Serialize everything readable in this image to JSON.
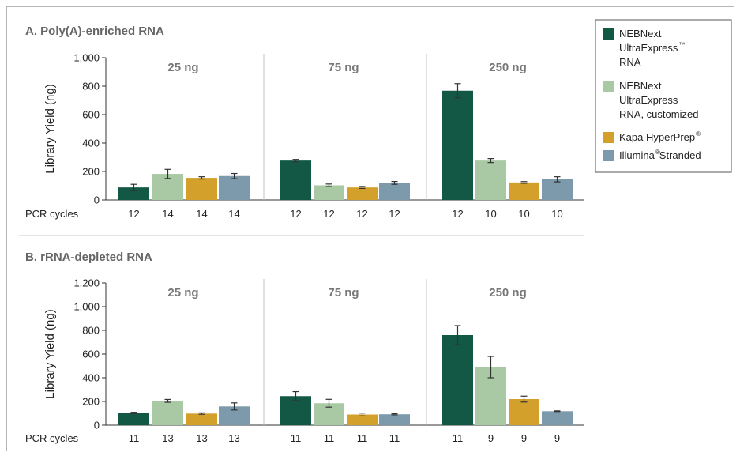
{
  "colors": {
    "ultraexpress": "#135745",
    "ultraexpress_custom": "#a8c9a4",
    "kapa": "#d4a02c",
    "illumina": "#7d9aac",
    "error": "#333333",
    "divider": "#c0c0c0"
  },
  "legend": {
    "items": [
      {
        "key": "ultraexpress",
        "lines": [
          "NEBNext",
          "UltraExpress",
          "RNA"
        ],
        "sup_line": 1,
        "sup": "™"
      },
      {
        "key": "ultraexpress_custom",
        "lines": [
          "NEBNext",
          "UltraExpress",
          "RNA, customized"
        ]
      },
      {
        "key": "kapa",
        "lines": [
          "Kapa HyperPrep"
        ],
        "sup_line": 0,
        "sup": "®"
      },
      {
        "key": "illumina",
        "lines": [
          "Illumina Stranded"
        ],
        "sup_word": "Illumina",
        "sup": "®"
      }
    ]
  },
  "chart_data": [
    {
      "type": "bar",
      "title": "A. Poly(A)-enriched RNA",
      "ylabel": "Library Yield (ng)",
      "ylim": [
        0,
        1000
      ],
      "yticks": [
        "0",
        "200",
        "400",
        "600",
        "800",
        "1,000"
      ],
      "ytick_values": [
        0,
        200,
        400,
        600,
        800,
        1000
      ],
      "row_label": "PCR cycles",
      "series_order": [
        "ultraexpress",
        "ultraexpress_custom",
        "kapa",
        "illumina"
      ],
      "groups": [
        {
          "name": "25 ng",
          "values": [
            88,
            183,
            155,
            168
          ],
          "errors": [
            22,
            32,
            8,
            18
          ],
          "cycles": [
            "12",
            "14",
            "14",
            "14"
          ]
        },
        {
          "name": "75 ng",
          "values": [
            277,
            103,
            88,
            120
          ],
          "errors": [
            8,
            9,
            7,
            10
          ],
          "cycles": [
            "12",
            "12",
            "12",
            "12"
          ]
        },
        {
          "name": "250 ng",
          "values": [
            768,
            277,
            123,
            145
          ],
          "errors": [
            50,
            14,
            6,
            18
          ],
          "cycles": [
            "12",
            "10",
            "10",
            "10"
          ]
        }
      ]
    },
    {
      "type": "bar",
      "title": "B. rRNA-depleted RNA",
      "ylabel": "Library Yield (ng)",
      "ylim": [
        0,
        1200
      ],
      "yticks": [
        "0",
        "200",
        "400",
        "600",
        "800",
        "1,000",
        "1,200"
      ],
      "ytick_values": [
        0,
        200,
        400,
        600,
        800,
        1000,
        1200
      ],
      "row_label": "PCR cycles",
      "series_order": [
        "ultraexpress",
        "ultraexpress_custom",
        "kapa",
        "illumina"
      ],
      "groups": [
        {
          "name": "25 ng",
          "values": [
            103,
            205,
            98,
            158
          ],
          "errors": [
            6,
            12,
            6,
            30
          ],
          "cycles": [
            "11",
            "13",
            "13",
            "13"
          ]
        },
        {
          "name": "75 ng",
          "values": [
            245,
            185,
            90,
            92
          ],
          "errors": [
            38,
            33,
            12,
            5
          ],
          "cycles": [
            "11",
            "11",
            "11",
            "11"
          ]
        },
        {
          "name": "250 ng",
          "values": [
            760,
            490,
            220,
            118
          ],
          "errors": [
            80,
            90,
            25,
            3
          ],
          "cycles": [
            "11",
            "9",
            "9",
            "9"
          ]
        }
      ]
    }
  ]
}
